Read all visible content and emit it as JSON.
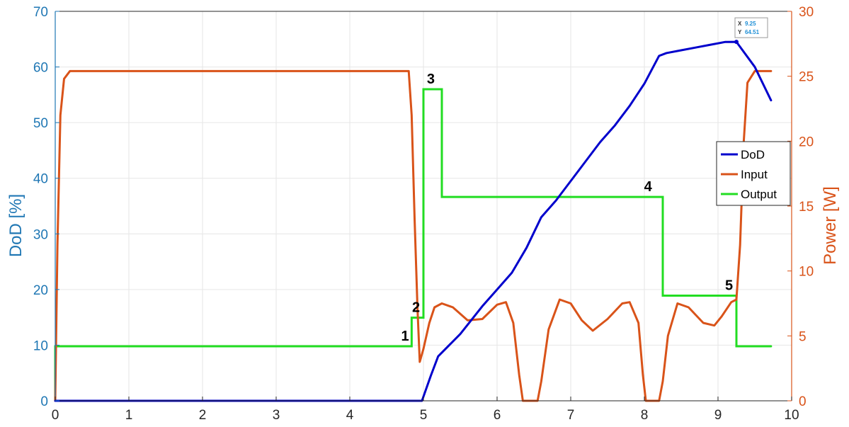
{
  "chart_data": {
    "type": "line",
    "xlabel": "",
    "ylabel_left": "DoD [%]",
    "ylabel_right": "Power [W]",
    "xlim": [
      0,
      10
    ],
    "ylim_left": [
      0,
      70
    ],
    "ylim_right": [
      0,
      30
    ],
    "x_ticks": [
      "0",
      "1",
      "2",
      "3",
      "4",
      "5",
      "6",
      "7",
      "8",
      "9",
      "10"
    ],
    "y_left_ticks": [
      "0",
      "10",
      "20",
      "30",
      "40",
      "50",
      "60",
      "70"
    ],
    "y_right_ticks": [
      "0",
      "5",
      "10",
      "15",
      "20",
      "25",
      "30"
    ],
    "grid": true,
    "legend_position": "right",
    "series": [
      {
        "name": "DoD",
        "axis": "left",
        "color": "#0000cc",
        "x": [
          0,
          4.98,
          5.1,
          5.2,
          5.5,
          5.8,
          6.0,
          6.2,
          6.4,
          6.6,
          6.8,
          7.0,
          7.2,
          7.4,
          7.6,
          7.8,
          8.0,
          8.2,
          8.3,
          8.5,
          8.7,
          8.9,
          9.1,
          9.25,
          9.5,
          9.72
        ],
        "y": [
          0,
          0,
          4.5,
          8,
          12,
          17,
          20,
          23,
          27.5,
          33,
          36,
          39.5,
          43,
          46.5,
          49.5,
          53,
          57,
          62,
          62.5,
          63,
          63.5,
          64,
          64.5,
          64.51,
          60,
          54
        ]
      },
      {
        "name": "Input",
        "axis": "right",
        "color": "#d95319",
        "x": [
          0,
          0.03,
          0.07,
          0.12,
          0.2,
          0.4,
          4.8,
          4.84,
          4.88,
          4.92,
          4.95,
          5.0,
          5.08,
          5.15,
          5.25,
          5.4,
          5.6,
          5.8,
          6.0,
          6.12,
          6.22,
          6.3,
          6.35,
          6.55,
          6.6,
          6.7,
          6.85,
          7.0,
          7.15,
          7.3,
          7.5,
          7.7,
          7.8,
          7.92,
          7.98,
          8.02,
          8.2,
          8.25,
          8.32,
          8.45,
          8.6,
          8.8,
          8.95,
          9.05,
          9.18,
          9.25,
          9.3,
          9.35,
          9.4,
          9.5,
          9.72
        ],
        "y": [
          0,
          12,
          22,
          24.8,
          25.4,
          25.4,
          25.4,
          22,
          14,
          7,
          3,
          4,
          6,
          7.2,
          7.5,
          7.2,
          6.2,
          6.3,
          7.4,
          7.6,
          6,
          2,
          0,
          0,
          1.5,
          5.5,
          7.8,
          7.5,
          6.2,
          5.4,
          6.3,
          7.5,
          7.6,
          6,
          2,
          0,
          0,
          1.5,
          5,
          7.5,
          7.2,
          6,
          5.8,
          6.5,
          7.6,
          7.8,
          12,
          20,
          24.5,
          25.4,
          25.4
        ]
      },
      {
        "name": "Output",
        "axis": "right",
        "color": "#22dd22",
        "x": [
          0,
          0,
          4.84,
          4.84,
          4.98,
          4.98,
          5.0,
          5.0,
          5.25,
          5.25,
          8.25,
          8.25,
          9.25,
          9.25,
          9.72
        ],
        "y": [
          0,
          4.2,
          4.2,
          6.4,
          6.4,
          6.4,
          6.4,
          24,
          24,
          15.7,
          15.7,
          8.1,
          8.1,
          4.2,
          4.2
        ]
      }
    ],
    "annotations": [
      {
        "text": "1",
        "x": 4.75,
        "y_right": 4.2
      },
      {
        "text": "2",
        "x": 4.9,
        "y_right": 6.4
      },
      {
        "text": "3",
        "x": 5.1,
        "y_right": 24
      },
      {
        "text": "4",
        "x": 8.05,
        "y_right": 15.7
      },
      {
        "text": "5",
        "x": 9.15,
        "y_right": 8.1
      }
    ],
    "datatip": {
      "x_label": "X",
      "x_value": "9.25",
      "y_label": "Y",
      "y_value": "64.51",
      "at_x": 9.25,
      "at_y": 64.51
    },
    "colors": {
      "left_axis": "#1f77b4",
      "right_axis": "#d95319",
      "grid": "#e6e6e6",
      "box": "#262626"
    }
  }
}
